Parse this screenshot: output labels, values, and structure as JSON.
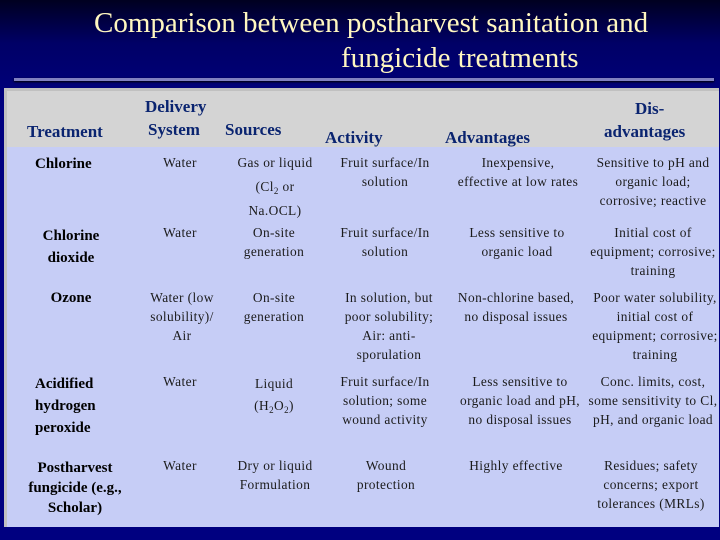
{
  "title": {
    "line1": "Comparison between postharvest sanitation and",
    "line2": "fungicide treatments"
  },
  "header": {
    "treatment": "Treatment",
    "delivery_line1": "Delivery",
    "delivery_line2": "System",
    "sources": "Sources",
    "activity": "Activity",
    "advantages": "Advantages",
    "disadvantages_line1": "Dis-",
    "disadvantages_line2": "advantages"
  },
  "rows": [
    {
      "treatment": "Chlorine",
      "delivery": "Water",
      "sources_line1": "Gas or liquid",
      "sources_line2_pre": "(Cl",
      "sources_line2_sub": "2",
      "sources_line2_post": " or",
      "sources_line3": "Na.OCL)",
      "activity": "Fruit surface/In solution",
      "advantages": "Inexpensive, effective at low rates",
      "disadvantages": "Sensitive to pH and organic load; corrosive; reactive"
    },
    {
      "treatment": "Chlorine dioxide",
      "delivery": "Water",
      "sources": "On-site generation",
      "activity": "Fruit surface/In solution",
      "advantages": "Less sensitive to organic load",
      "disadvantages": "Initial cost of equipment; corrosive; training"
    },
    {
      "treatment": "Ozone",
      "delivery": "Water (low solubility)/ Air",
      "sources": "On-site generation",
      "activity": "In solution, but poor solubility; Air: anti-sporulation",
      "advantages": "Non-chlorine based, no disposal issues",
      "disadvantages": "Poor water solubility, initial cost of equipment; corrosive; training"
    },
    {
      "treatment": "Acidified hydrogen peroxide",
      "delivery": "Water",
      "sources_line1": "Liquid",
      "sources_line2_pre": "(H",
      "sources_line2_sub": "2",
      "sources_line2_mid": "O",
      "sources_line2_sub2": "2",
      "sources_line2_post": ")",
      "activity": "Fruit surface/In solution; some wound activity",
      "advantages": "Less sensitive to organic load and pH, no disposal issues",
      "disadvantages": "Conc. limits, cost, some sensitivity to Cl, pH, and organic load"
    },
    {
      "treatment": "Postharvest fungicide (e.g., Scholar)",
      "delivery": "Water",
      "sources": "Dry or liquid Formulation",
      "activity": "Wound protection",
      "advantages": "Highly effective",
      "disadvantages": "Residues; safety concerns; export tolerances (MRLs)"
    }
  ]
}
